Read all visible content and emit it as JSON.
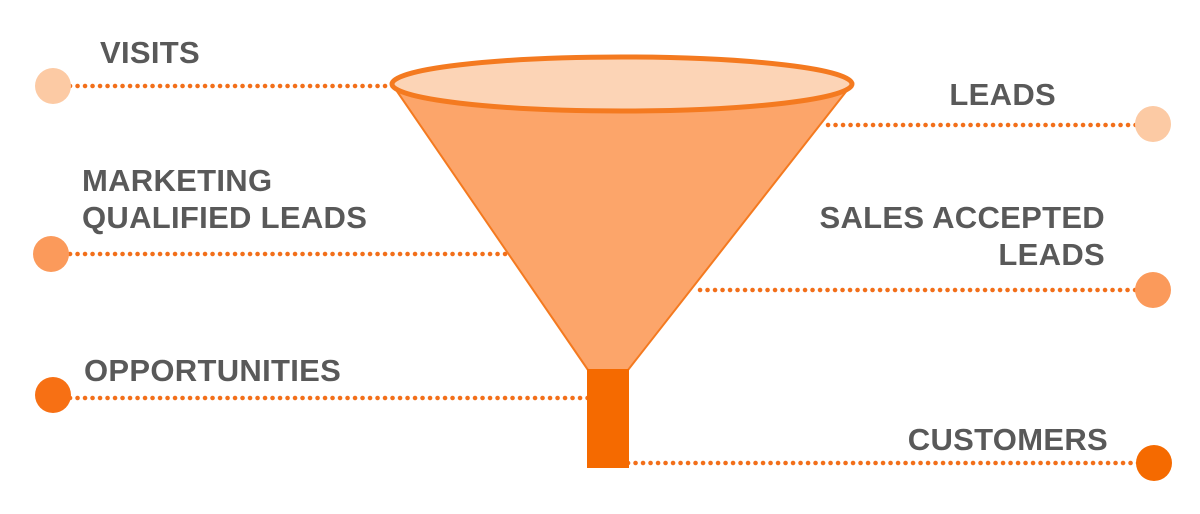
{
  "diagram": {
    "stages": [
      {
        "id": "visits",
        "label_lines": [
          "VISITS"
        ],
        "side": "left",
        "color": "#FCCAA4"
      },
      {
        "id": "leads",
        "label_lines": [
          "LEADS"
        ],
        "side": "right",
        "color": "#FCCAA4"
      },
      {
        "id": "mql",
        "label_lines": [
          "MARKETING",
          "QUALIFIED LEADS"
        ],
        "side": "left",
        "color": "#FB9A5B"
      },
      {
        "id": "sal",
        "label_lines": [
          "SALES ACCEPTED",
          "LEADS"
        ],
        "side": "right",
        "color": "#FB9A5B"
      },
      {
        "id": "opportunities",
        "label_lines": [
          "OPPORTUNITIES"
        ],
        "side": "left",
        "color": "#F77014"
      },
      {
        "id": "customers",
        "label_lines": [
          "CUSTOMERS"
        ],
        "side": "right",
        "color": "#F56A00"
      }
    ],
    "colors": {
      "funnel_rim": "#F47A20",
      "funnel_mouth": "#FCD4B6",
      "funnel_body": "#FCA56A",
      "funnel_spout": "#F56A00",
      "connector_line": "#F26F1A",
      "label_text": "#595959"
    }
  }
}
